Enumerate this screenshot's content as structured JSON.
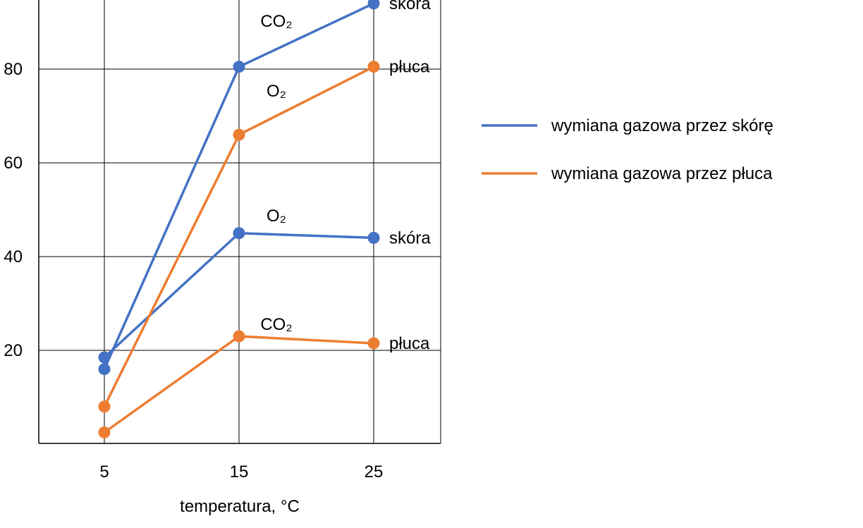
{
  "chart_data": {
    "type": "line",
    "xlabel": "temperatura, °C",
    "x": [
      5,
      15,
      25
    ],
    "x_tick_labels": [
      "5",
      "15",
      "25"
    ],
    "y_tick_labels": [
      "20",
      "40",
      "60",
      "80"
    ],
    "ylim": [
      0,
      100
    ],
    "grid": true,
    "legend_position": "right",
    "legend": [
      {
        "label": "wymiana gazowa przez skórę",
        "color": "#4472C4"
      },
      {
        "label": "wymiana gazowa przez płuca",
        "color": "#ED7D31"
      }
    ],
    "series": [
      {
        "gas": "CO₂",
        "organ": "skóra",
        "color": "#4472C4",
        "values": [
          16,
          80.5,
          94
        ]
      },
      {
        "gas": "O₂",
        "organ": "skóra",
        "color": "#4472C4",
        "values": [
          18.5,
          45,
          44
        ]
      },
      {
        "gas": "O₂",
        "organ": "płuca",
        "color": "#ED7D31",
        "values": [
          8,
          66,
          80.5
        ]
      },
      {
        "gas": "CO₂",
        "organ": "płuca",
        "color": "#ED7D31",
        "values": [
          2.5,
          23,
          21.5
        ]
      }
    ]
  }
}
